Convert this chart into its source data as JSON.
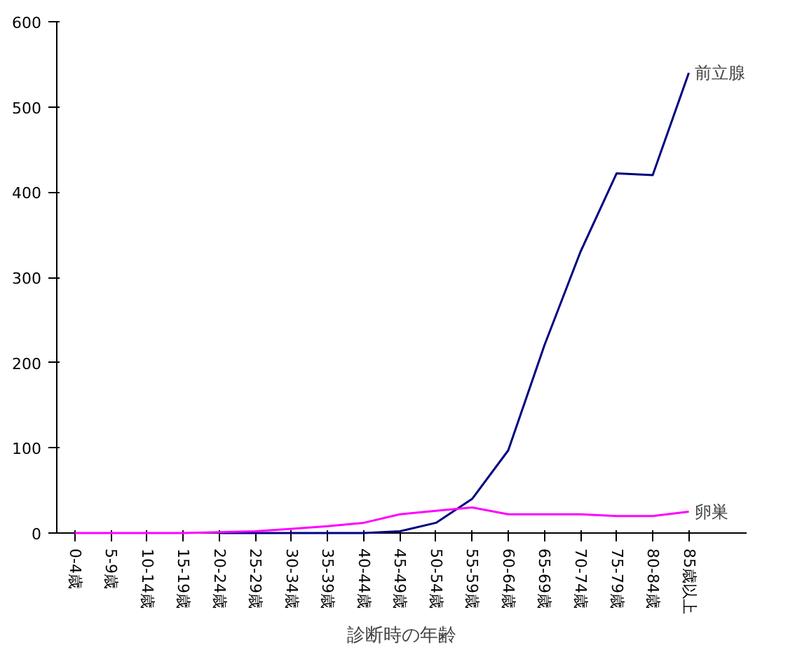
{
  "chart_data": {
    "type": "line",
    "xlabel": "診断時の年齢",
    "categories": [
      "0-4歳",
      "5-9歳",
      "10-14歳",
      "15-19歳",
      "20-24歳",
      "25-29歳",
      "30-34歳",
      "35-39歳",
      "40-44歳",
      "45-49歳",
      "50-54歳",
      "55-59歳",
      "60-64歳",
      "65-69歳",
      "70-74歳",
      "75-79歳",
      "80-84歳",
      "85歳以上"
    ],
    "series": [
      {
        "name": "前立腺",
        "color": "#000080",
        "values": [
          null,
          null,
          null,
          null,
          0,
          0,
          0,
          0,
          0,
          2,
          12,
          40,
          97,
          220,
          330,
          422,
          420,
          540
        ]
      },
      {
        "name": "卵巣",
        "color": "#ff00ff",
        "values": [
          0,
          0,
          0,
          0,
          1,
          2,
          5,
          8,
          12,
          22,
          26,
          30,
          22,
          22,
          22,
          20,
          20,
          25
        ]
      }
    ],
    "ylim": [
      0,
      600
    ],
    "yticks": [
      0,
      100,
      200,
      300,
      400,
      500,
      600
    ],
    "grid": false,
    "legend": false
  }
}
